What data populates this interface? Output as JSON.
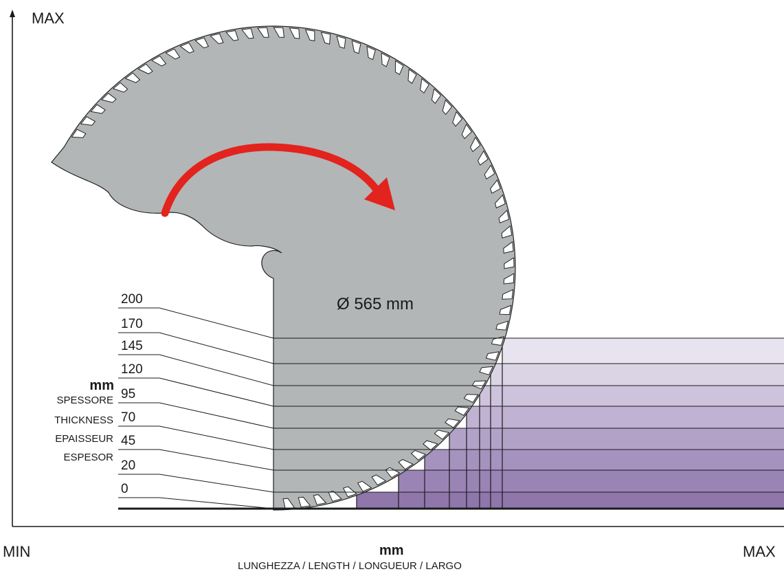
{
  "axes": {
    "y_max": "MAX",
    "x_min": "MIN",
    "x_max": "MAX",
    "x_unit": "mm",
    "x_caption": "LUNGHEZZA / LENGTH / LONGUEUR / LARGO",
    "y_unit": "mm",
    "y_caption_lines": [
      "SPESSORE",
      "THICKNESS",
      "EPAISSEUR",
      "ESPESOR"
    ]
  },
  "blade": {
    "diameter_label": "Ø 565 mm",
    "rotation": "clockwise",
    "fill_color": "#b3b6b6",
    "arrow_color": "#e3231d"
  },
  "thickness_levels": [
    "200",
    "170",
    "145",
    "120",
    "95",
    "70",
    "45",
    "20",
    "0"
  ],
  "cut_zone_colors": [
    "#e8e4ef",
    "#dbd4e5",
    "#cdc3dc",
    "#c0b2d2",
    "#b3a2c8",
    "#a692bf",
    "#9a83b5",
    "#8f76ab"
  ]
}
